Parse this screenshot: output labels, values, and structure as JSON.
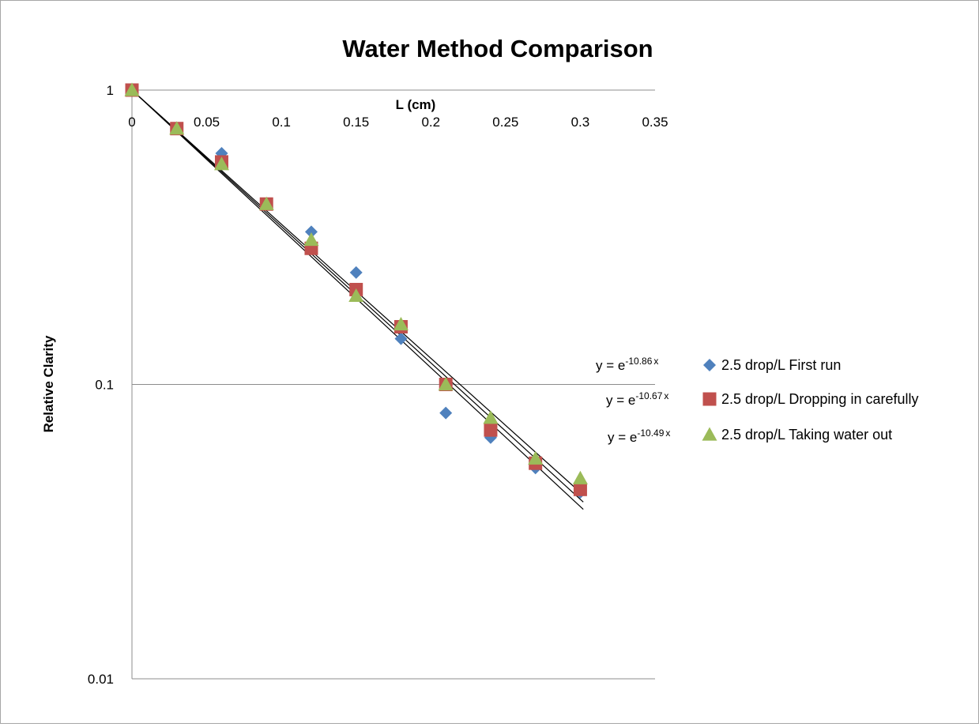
{
  "chart_data": {
    "type": "scatter",
    "title": "Water Method Comparison",
    "xlabel": "L (cm)",
    "ylabel": "Relative Clarity",
    "x_ticks": [
      "0",
      "0.05",
      "0.1",
      "0.15",
      "0.2",
      "0.25",
      "0.3",
      "0.35"
    ],
    "y_ticks": [
      "1",
      "0.1",
      "0.01"
    ],
    "xlim": [
      0,
      0.35
    ],
    "ylim": [
      0.01,
      1
    ],
    "y_scale": "log",
    "grid": "horizontal major gridlines",
    "legend_position": "right",
    "series": [
      {
        "name": "2.5 drop/L First run",
        "marker": "diamond",
        "color": "#4f81bd",
        "x": [
          0,
          0.03,
          0.06,
          0.09,
          0.12,
          0.15,
          0.18,
          0.21,
          0.24,
          0.27,
          0.3
        ],
        "y": [
          1.0,
          0.74,
          0.61,
          0.41,
          0.33,
          0.24,
          0.143,
          0.08,
          0.066,
          0.052,
          0.043
        ],
        "trendline": {
          "base": "e",
          "exponent": "-10.86",
          "variable": "x",
          "k": -10.86
        }
      },
      {
        "name": "2.5 drop/L Dropping in carefully",
        "marker": "square",
        "color": "#c0504d",
        "x": [
          0,
          0.03,
          0.06,
          0.09,
          0.12,
          0.15,
          0.18,
          0.21,
          0.24,
          0.27,
          0.3
        ],
        "y": [
          1.0,
          0.74,
          0.57,
          0.41,
          0.29,
          0.21,
          0.157,
          0.1,
          0.07,
          0.054,
          0.044
        ],
        "trendline": {
          "base": "e",
          "exponent": "-10.67",
          "variable": "x",
          "k": -10.67
        }
      },
      {
        "name": "2.5 drop/L Taking water out",
        "marker": "triangle",
        "color": "#9bbb59",
        "x": [
          0,
          0.03,
          0.06,
          0.09,
          0.12,
          0.15,
          0.18,
          0.21,
          0.24,
          0.27,
          0.3
        ],
        "y": [
          1.0,
          0.74,
          0.56,
          0.41,
          0.31,
          0.2,
          0.16,
          0.1,
          0.077,
          0.056,
          0.048
        ],
        "trendline": {
          "base": "e",
          "exponent": "-10.49",
          "variable": "x",
          "k": -10.49
        }
      }
    ]
  }
}
